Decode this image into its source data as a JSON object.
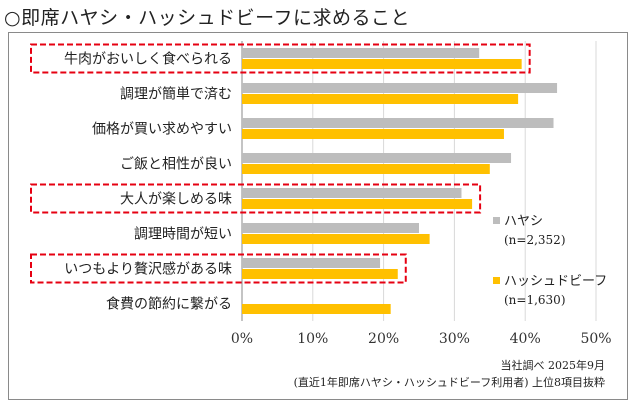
{
  "page": {
    "title": "○即席ハヤシ・ハッシュドビーフに求めること"
  },
  "chart_data": {
    "type": "bar",
    "orientation": "horizontal",
    "categories": [
      "牛肉がおいしく食べられる",
      "調理が簡単で済む",
      "価格が買い求めやすい",
      "ご飯と相性が良い",
      "大人が楽しめる味",
      "調理時間が短い",
      "いつもより贅沢感がある味",
      "食費の節約に繋がる"
    ],
    "series": [
      {
        "name": "ハヤシ",
        "sample": "(n=2,352)",
        "color": "#bdbdbd",
        "values": [
          33.5,
          44.5,
          44.0,
          38.0,
          31.0,
          25.0,
          19.5,
          0
        ]
      },
      {
        "name": "ハッシュドビーフ",
        "sample": "(n=1,630)",
        "color": "#ffc000",
        "values": [
          39.5,
          39.0,
          37.0,
          35.0,
          32.5,
          26.5,
          22.0,
          21.0
        ]
      }
    ],
    "xlim": [
      0,
      50
    ],
    "xticks": [
      "0%",
      "10%",
      "20%",
      "30%",
      "40%",
      "50%"
    ],
    "grid": true,
    "legend_position": "right",
    "highlighted_categories": [
      0,
      4,
      6
    ],
    "highlight_color": "#e60012"
  },
  "notes": {
    "line1": "当社調べ 2025年9月",
    "line2": "(直近1年即席ハヤシ・ハッシュドビーフ利用者) 上位8項目抜粋"
  }
}
